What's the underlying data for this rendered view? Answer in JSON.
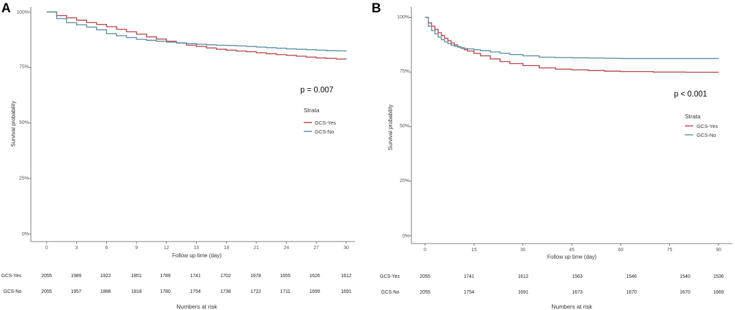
{
  "chart_data": [
    {
      "panel": "A",
      "type": "line",
      "step": true,
      "xlabel": "Follow up time (day)",
      "ylabel": "Survival probability",
      "xlim": [
        0,
        30
      ],
      "ylim": [
        0,
        1
      ],
      "xticks": [
        "0",
        "3",
        "6",
        "9",
        "12",
        "15",
        "18",
        "21",
        "24",
        "27",
        "30"
      ],
      "yticks": [
        "0%",
        "25%",
        "50%",
        "75%",
        "100%"
      ],
      "p_value": "p = 0.007",
      "legend": {
        "title": "Strata",
        "placement": "right"
      },
      "series": [
        {
          "name": "GCS-Yes",
          "color": "#b5484c",
          "x": [
            0,
            1,
            2,
            3,
            4,
            5,
            6,
            7,
            8,
            9,
            10,
            11,
            12,
            13,
            14,
            15,
            16,
            17,
            18,
            19,
            20,
            21,
            22,
            23,
            24,
            25,
            26,
            27,
            28,
            29,
            30
          ],
          "y": [
            1.0,
            0.984,
            0.974,
            0.963,
            0.953,
            0.944,
            0.934,
            0.922,
            0.911,
            0.9,
            0.888,
            0.878,
            0.868,
            0.86,
            0.851,
            0.845,
            0.838,
            0.832,
            0.828,
            0.824,
            0.821,
            0.816,
            0.812,
            0.808,
            0.805,
            0.801,
            0.797,
            0.793,
            0.791,
            0.788,
            0.787
          ]
        },
        {
          "name": "GCS-No",
          "color": "#5b8fa3",
          "x": [
            0,
            1,
            2,
            3,
            4,
            5,
            6,
            7,
            8,
            9,
            10,
            11,
            12,
            13,
            14,
            15,
            16,
            17,
            18,
            19,
            20,
            21,
            22,
            23,
            24,
            25,
            26,
            27,
            28,
            29,
            30
          ],
          "y": [
            1.0,
            0.97,
            0.952,
            0.942,
            0.932,
            0.92,
            0.902,
            0.893,
            0.885,
            0.877,
            0.872,
            0.868,
            0.864,
            0.861,
            0.858,
            0.855,
            0.852,
            0.85,
            0.849,
            0.847,
            0.845,
            0.842,
            0.839,
            0.837,
            0.834,
            0.832,
            0.83,
            0.828,
            0.826,
            0.825,
            0.823
          ]
        }
      ],
      "risk_table": {
        "title": "Numbers at risk",
        "times": [
          0,
          3,
          6,
          9,
          12,
          15,
          18,
          21,
          24,
          27,
          30
        ],
        "rows": [
          {
            "label": "GCS-Yes",
            "values": [
              "2055",
              "1989",
              "1922",
              "1851",
              "1789",
              "1741",
              "1702",
              "1678",
              "1655",
              "1626",
              "1612"
            ]
          },
          {
            "label": "GCS-No",
            "values": [
              "2055",
              "1957",
              "1888",
              "1818",
              "1780",
              "1754",
              "1738",
              "1722",
              "1711",
              "1699",
              "1691"
            ]
          }
        ]
      }
    },
    {
      "panel": "B",
      "type": "line",
      "step": true,
      "xlabel": "Follow up time (day)",
      "ylabel": "Survival probability",
      "xlim": [
        0,
        90
      ],
      "ylim": [
        0,
        1
      ],
      "xticks": [
        "0",
        "15",
        "30",
        "45",
        "60",
        "75",
        "90"
      ],
      "yticks": [
        "0%",
        "25%",
        "50%",
        "75%",
        "100%"
      ],
      "p_value": "p < 0.001",
      "legend": {
        "title": "Strata",
        "placement": "right"
      },
      "series": [
        {
          "name": "GCS-Yes",
          "color": "#b5484c",
          "x": [
            0,
            1,
            2,
            3,
            4,
            5,
            6,
            7,
            8,
            9,
            10,
            11,
            12,
            13,
            15,
            17,
            20,
            23,
            26,
            30,
            35,
            40,
            45,
            50,
            55,
            60,
            70,
            80,
            90
          ],
          "y": [
            1.0,
            0.975,
            0.96,
            0.945,
            0.93,
            0.917,
            0.904,
            0.893,
            0.883,
            0.874,
            0.866,
            0.859,
            0.852,
            0.846,
            0.835,
            0.824,
            0.81,
            0.798,
            0.789,
            0.78,
            0.769,
            0.763,
            0.76,
            0.757,
            0.754,
            0.752,
            0.75,
            0.749,
            0.748
          ]
        },
        {
          "name": "GCS-No",
          "color": "#5b8fa3",
          "x": [
            0,
            1,
            2,
            3,
            4,
            5,
            6,
            7,
            8,
            9,
            10,
            11,
            12,
            13,
            15,
            17,
            20,
            23,
            26,
            30,
            35,
            40,
            45,
            50,
            55,
            60,
            70,
            80,
            90
          ],
          "y": [
            1.0,
            0.96,
            0.94,
            0.925,
            0.91,
            0.898,
            0.888,
            0.88,
            0.873,
            0.868,
            0.864,
            0.861,
            0.858,
            0.856,
            0.852,
            0.848,
            0.842,
            0.836,
            0.83,
            0.824,
            0.818,
            0.816,
            0.815,
            0.814,
            0.813,
            0.812,
            0.812,
            0.812,
            0.811
          ]
        }
      ],
      "risk_table": {
        "title": "Numbers at risk",
        "times": [
          0,
          15,
          30,
          45,
          60,
          75,
          90
        ],
        "rows": [
          {
            "label": "GCS-Yes",
            "values": [
              "2055",
              "1741",
              "1612",
              "1563",
              "1546",
              "1540",
              "1536"
            ]
          },
          {
            "label": "GCS-No",
            "values": [
              "2055",
              "1754",
              "1691",
              "1673",
              "1670",
              "1670",
              "1669"
            ]
          }
        ]
      }
    }
  ]
}
